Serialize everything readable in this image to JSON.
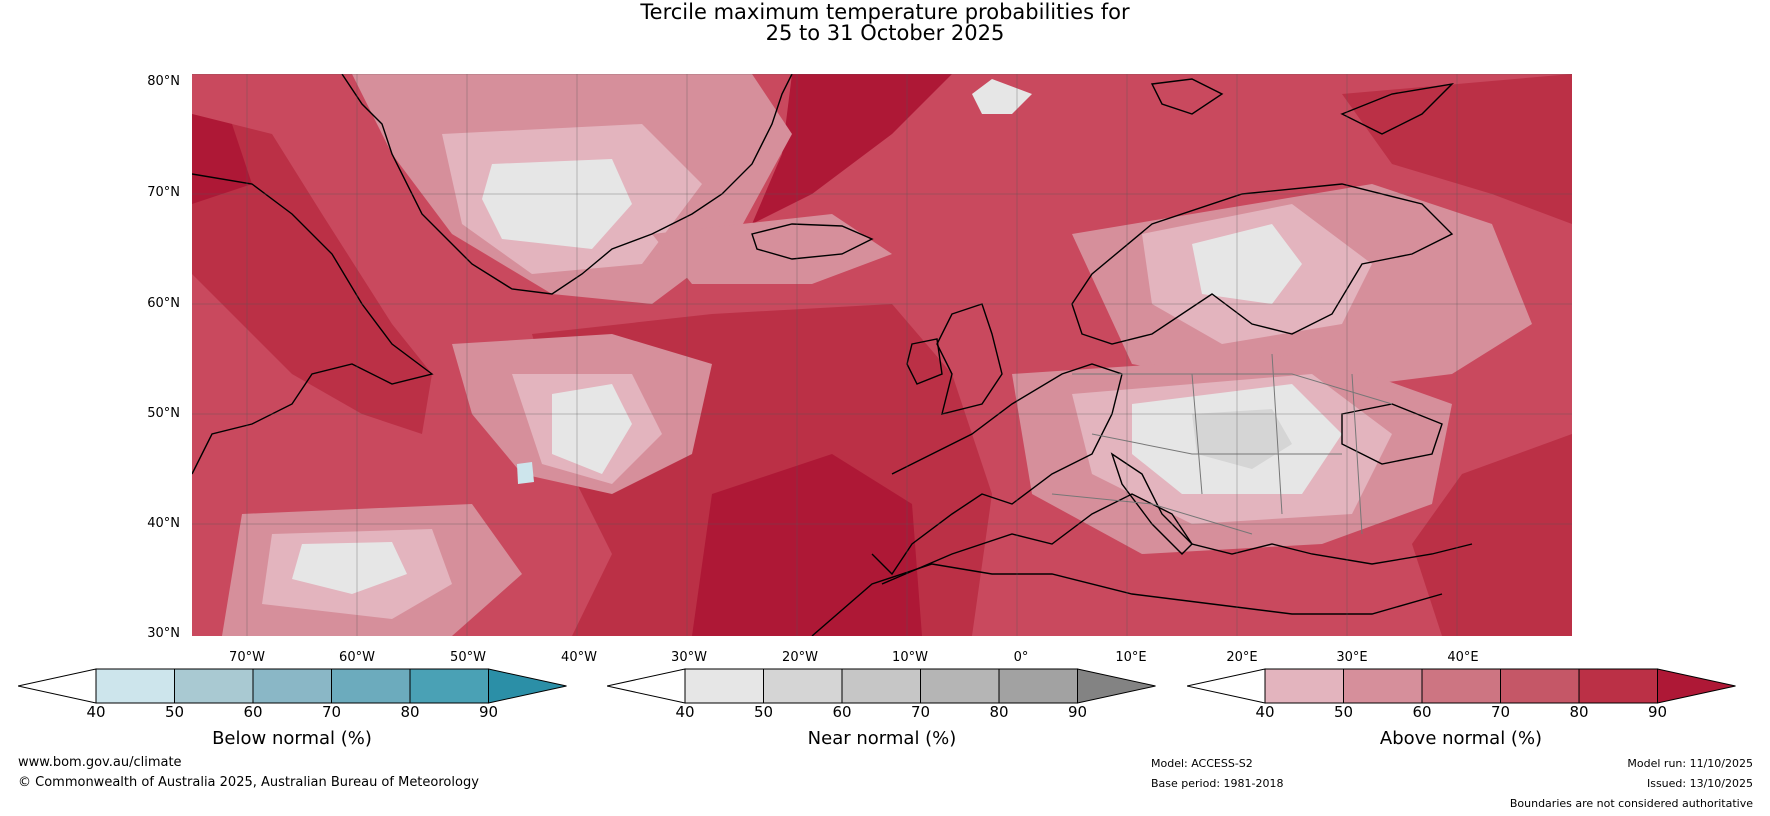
{
  "title_line1": "Tercile maximum temperature probabilities for",
  "title_line2": "25 to 31 October 2025",
  "lat_ticks": [
    "80°N",
    "70°N",
    "60°N",
    "50°N",
    "40°N",
    "30°N"
  ],
  "lon_ticks": [
    "70°W",
    "60°W",
    "50°W",
    "40°W",
    "30°W",
    "20°W",
    "10°W",
    "0°",
    "10°E",
    "20°E",
    "30°E",
    "40°E"
  ],
  "colorbars": [
    {
      "label": "Below normal (%)",
      "ticks": [
        "40",
        "50",
        "60",
        "70",
        "80",
        "90"
      ],
      "colors": [
        "#ffffff",
        "#cde5ec",
        "#a9c9d2",
        "#8ab7c6",
        "#6cabbd",
        "#4aa1b5",
        "#2b8fa7"
      ]
    },
    {
      "label": "Near normal (%)",
      "ticks": [
        "40",
        "50",
        "60",
        "70",
        "80",
        "90"
      ],
      "colors": [
        "#ffffff",
        "#e6e6e6",
        "#d5d5d5",
        "#c6c6c6",
        "#b5b5b5",
        "#a2a2a2",
        "#838383"
      ]
    },
    {
      "label": "Above normal (%)",
      "ticks": [
        "40",
        "50",
        "60",
        "70",
        "80",
        "90"
      ],
      "colors": [
        "#ffffff",
        "#e3b4be",
        "#d68f9b",
        "#cd7582",
        "#c55767",
        "#bb3046",
        "#ae1836"
      ]
    }
  ],
  "footer": {
    "website": "www.bom.gov.au/climate",
    "copyright": "© Commonwealth of Australia 2025, Australian Bureau of Meteorology",
    "model": "Model: ACCESS-S2",
    "base_period": "Base period: 1981-2018",
    "model_run": "Model run: 11/10/2025",
    "issued": "Issued: 13/10/2025",
    "disclaimer": "Boundaries are not considered authoritative"
  },
  "map_colors": {
    "above_90": "#ae1836",
    "above_80": "#bb3046",
    "above_70": "#c55767",
    "above_60": "#cd7582",
    "above_50": "#d68f9b",
    "above_40": "#e3b4be",
    "near_50": "#e6e6e6",
    "near_60": "#d5d5d5",
    "below_50": "#cde5ec"
  }
}
